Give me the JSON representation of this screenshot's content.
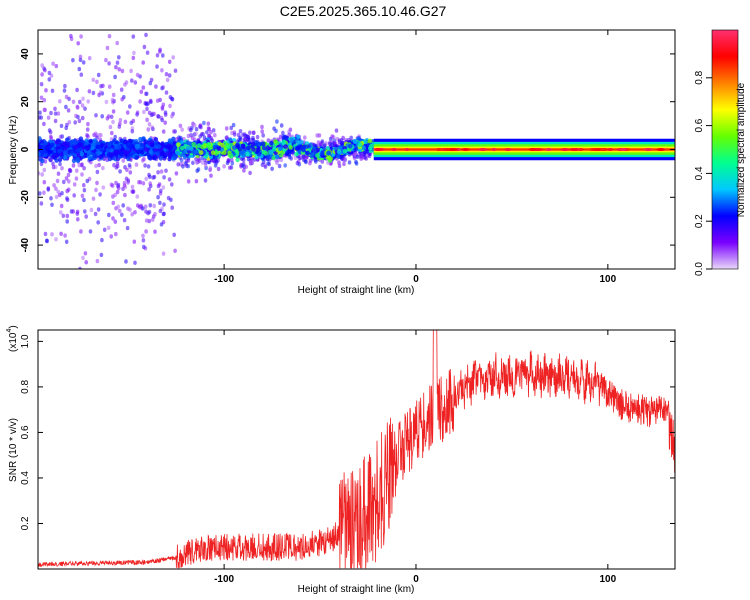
{
  "title": "C2E5.2025.365.10.46.G27",
  "chart_data": [
    {
      "type": "heatmap",
      "xlabel": "Height of straight line (km)",
      "ylabel": "Frequency (Hz)",
      "xlim": [
        -197,
        135
      ],
      "ylim": [
        -50,
        50
      ],
      "xticks": [
        -100,
        0,
        100
      ],
      "yticks": [
        -40,
        -20,
        0,
        20,
        40
      ],
      "colorbar": {
        "label": "Normalized spectral amplitude",
        "ticks": [
          0.0,
          0.2,
          0.4,
          0.6,
          0.8
        ],
        "range": [
          0,
          1
        ],
        "colors": [
          "#e8d8f8",
          "#7a00ff",
          "#0000ff",
          "#00c8ff",
          "#00ff90",
          "#66ff00",
          "#ffff00",
          "#ff8000",
          "#ff0000",
          "#ff3070"
        ]
      },
      "description_regions": [
        {
          "x_range": [
            -197,
            -125
          ],
          "freq_spread_hz": 50,
          "amplitude": "low, scattered"
        },
        {
          "x_range": [
            -125,
            -22
          ],
          "freq_spread_hz": 15,
          "amplitude": "medium, narrowing band"
        },
        {
          "x_range": [
            -22,
            135
          ],
          "freq_spread_hz": 3,
          "amplitude": "high, narrow band near 0 Hz"
        }
      ]
    },
    {
      "type": "line",
      "xlabel": "Height of straight line (km)",
      "ylabel": "SNR (10 * v/v)",
      "yscale_label": "(x10",
      "yscale_exp": "4",
      "xlim": [
        -197,
        135
      ],
      "ylim": [
        0,
        1.05
      ],
      "xticks": [
        -100,
        0,
        100
      ],
      "yticks": [
        0.2,
        0.4,
        0.6,
        0.8,
        1.0
      ],
      "line_color": "#ee2222",
      "envelope": {
        "x": [
          -197,
          -170,
          -140,
          -125,
          -115,
          -100,
          -80,
          -60,
          -45,
          -35,
          -25,
          -20,
          -15,
          -10,
          -5,
          0,
          5,
          10,
          20,
          30,
          45,
          55,
          65,
          80,
          95,
          105,
          115,
          125,
          135
        ],
        "y": [
          0.01,
          0.015,
          0.02,
          0.04,
          0.08,
          0.09,
          0.09,
          0.09,
          0.12,
          0.18,
          0.25,
          0.3,
          0.38,
          0.48,
          0.55,
          0.6,
          0.64,
          0.68,
          0.75,
          0.82,
          0.85,
          0.86,
          0.85,
          0.84,
          0.82,
          0.73,
          0.7,
          0.69,
          0.7
        ]
      }
    }
  ]
}
